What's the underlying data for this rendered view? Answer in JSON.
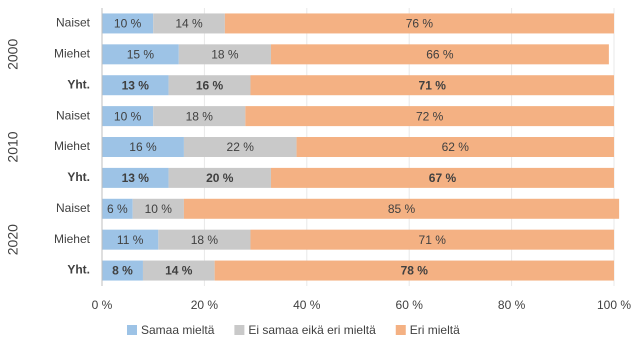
{
  "chart_data": {
    "type": "stacked-bar-horizontal",
    "categories": [
      "Naiset",
      "Miehet",
      "Yht.",
      "Naiset",
      "Miehet",
      "Yht.",
      "Naiset",
      "Miehet",
      "Yht."
    ],
    "groups": [
      "2000",
      "2010",
      "2020"
    ],
    "series": [
      {
        "name": "Samaa mieltä",
        "color": "#9dc3e6",
        "values": [
          10,
          15,
          13,
          10,
          16,
          13,
          6,
          11,
          8
        ],
        "value_labels": [
          "10 %",
          "15 %",
          "13 %",
          "10 %",
          "16 %",
          "13 %",
          "6 %",
          "11 %",
          "8 %"
        ]
      },
      {
        "name": "Ei samaa eikä eri mieltä",
        "color": "#c9c9c9",
        "values": [
          14,
          18,
          16,
          18,
          22,
          20,
          10,
          18,
          14
        ],
        "value_labels": [
          "14 %",
          "18 %",
          "16 %",
          "18 %",
          "22 %",
          "20 %",
          "10 %",
          "18 %",
          "14 %"
        ]
      },
      {
        "name": "Eri mieltä",
        "color": "#f4b183",
        "values": [
          76,
          66,
          71,
          72,
          62,
          67,
          85,
          71,
          78
        ],
        "value_labels": [
          "76 %",
          "66 %",
          "71 %",
          "72 %",
          "62 %",
          "67 %",
          "85 %",
          "71 %",
          "78 %"
        ]
      }
    ],
    "xlim": [
      0,
      100
    ],
    "xticks": [
      {
        "value": 0,
        "label": "0 %"
      },
      {
        "value": 20,
        "label": "20 %"
      },
      {
        "value": 40,
        "label": "40 %"
      },
      {
        "value": 60,
        "label": "60 %"
      },
      {
        "value": 80,
        "label": "80 %"
      },
      {
        "value": 100,
        "label": "100 %"
      }
    ],
    "grid": true,
    "legend": "bottom"
  }
}
